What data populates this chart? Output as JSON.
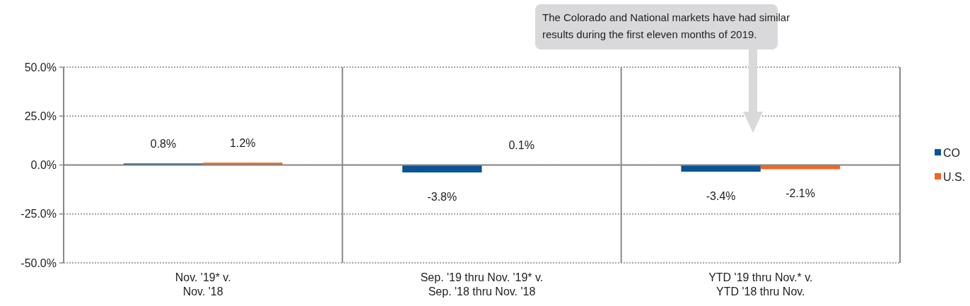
{
  "chart_data": {
    "type": "bar",
    "categories": [
      "Nov. '19* v.\nNov. '18",
      "Sep. '19 thru Nov. '19* v.\nSep. '18 thru Nov. '18",
      "YTD '19 thru Nov.* v.\nYTD '18 thru Nov."
    ],
    "series": [
      {
        "name": "CO",
        "color": "#0b5394",
        "values": [
          0.8,
          -3.8,
          -3.4
        ],
        "value_labels": [
          "0.8%",
          "-3.8%",
          "-3.4%"
        ]
      },
      {
        "name": "U.S.",
        "color": "#f26522",
        "values": [
          1.2,
          0.1,
          -2.1
        ],
        "value_labels": [
          "1.2%",
          "0.1%",
          "-2.1%"
        ]
      }
    ],
    "ylim": [
      -50,
      50
    ],
    "yticks": [
      {
        "value": -50,
        "label": "-50.0%"
      },
      {
        "value": -25,
        "label": "-25.0%"
      },
      {
        "value": 0,
        "label": "0.0%"
      },
      {
        "value": 25,
        "label": "25.0%"
      },
      {
        "value": 50,
        "label": "50.0%"
      }
    ],
    "grid": "y",
    "legend": "right",
    "annotations": [
      "The Colorado and National markets have had similar results during the first eleven months of 2019."
    ]
  }
}
